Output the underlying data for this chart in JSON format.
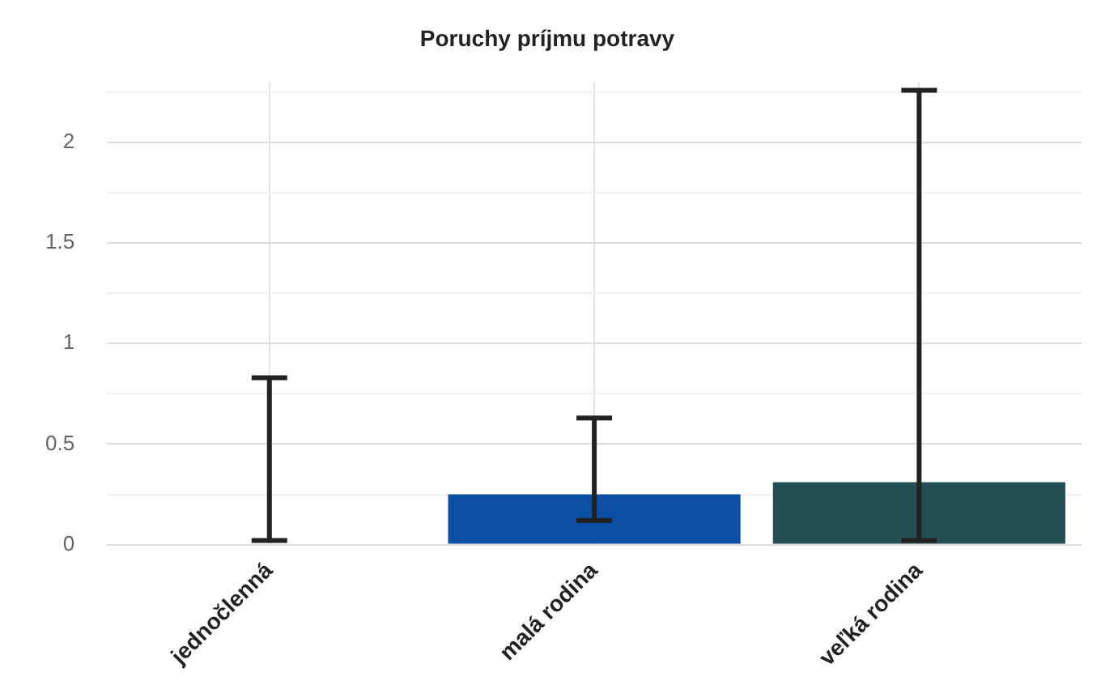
{
  "chart_data": {
    "type": "bar",
    "title": "Poruchy príjmu potravy",
    "categories": [
      "jednočlenná",
      "malá rodina",
      "veľká rodina"
    ],
    "values": [
      0,
      0.25,
      0.31
    ],
    "colors": [
      "#0a4fa3",
      "#0a4fa3",
      "#234f52"
    ],
    "errors": [
      [
        0.02,
        0.83
      ],
      [
        0.12,
        0.63
      ],
      [
        0.02,
        2.26
      ]
    ],
    "ylim": [
      0,
      2.3
    ],
    "yticks": [
      0,
      {
        "value": 0.25,
        "label": null
      },
      0.5,
      {
        "value": 0.75,
        "label": null
      },
      1,
      {
        "value": 1.25,
        "label": null
      },
      1.5,
      {
        "value": 1.75,
        "label": null
      },
      2,
      {
        "value": 2.25,
        "label": null
      }
    ],
    "grid": true
  }
}
